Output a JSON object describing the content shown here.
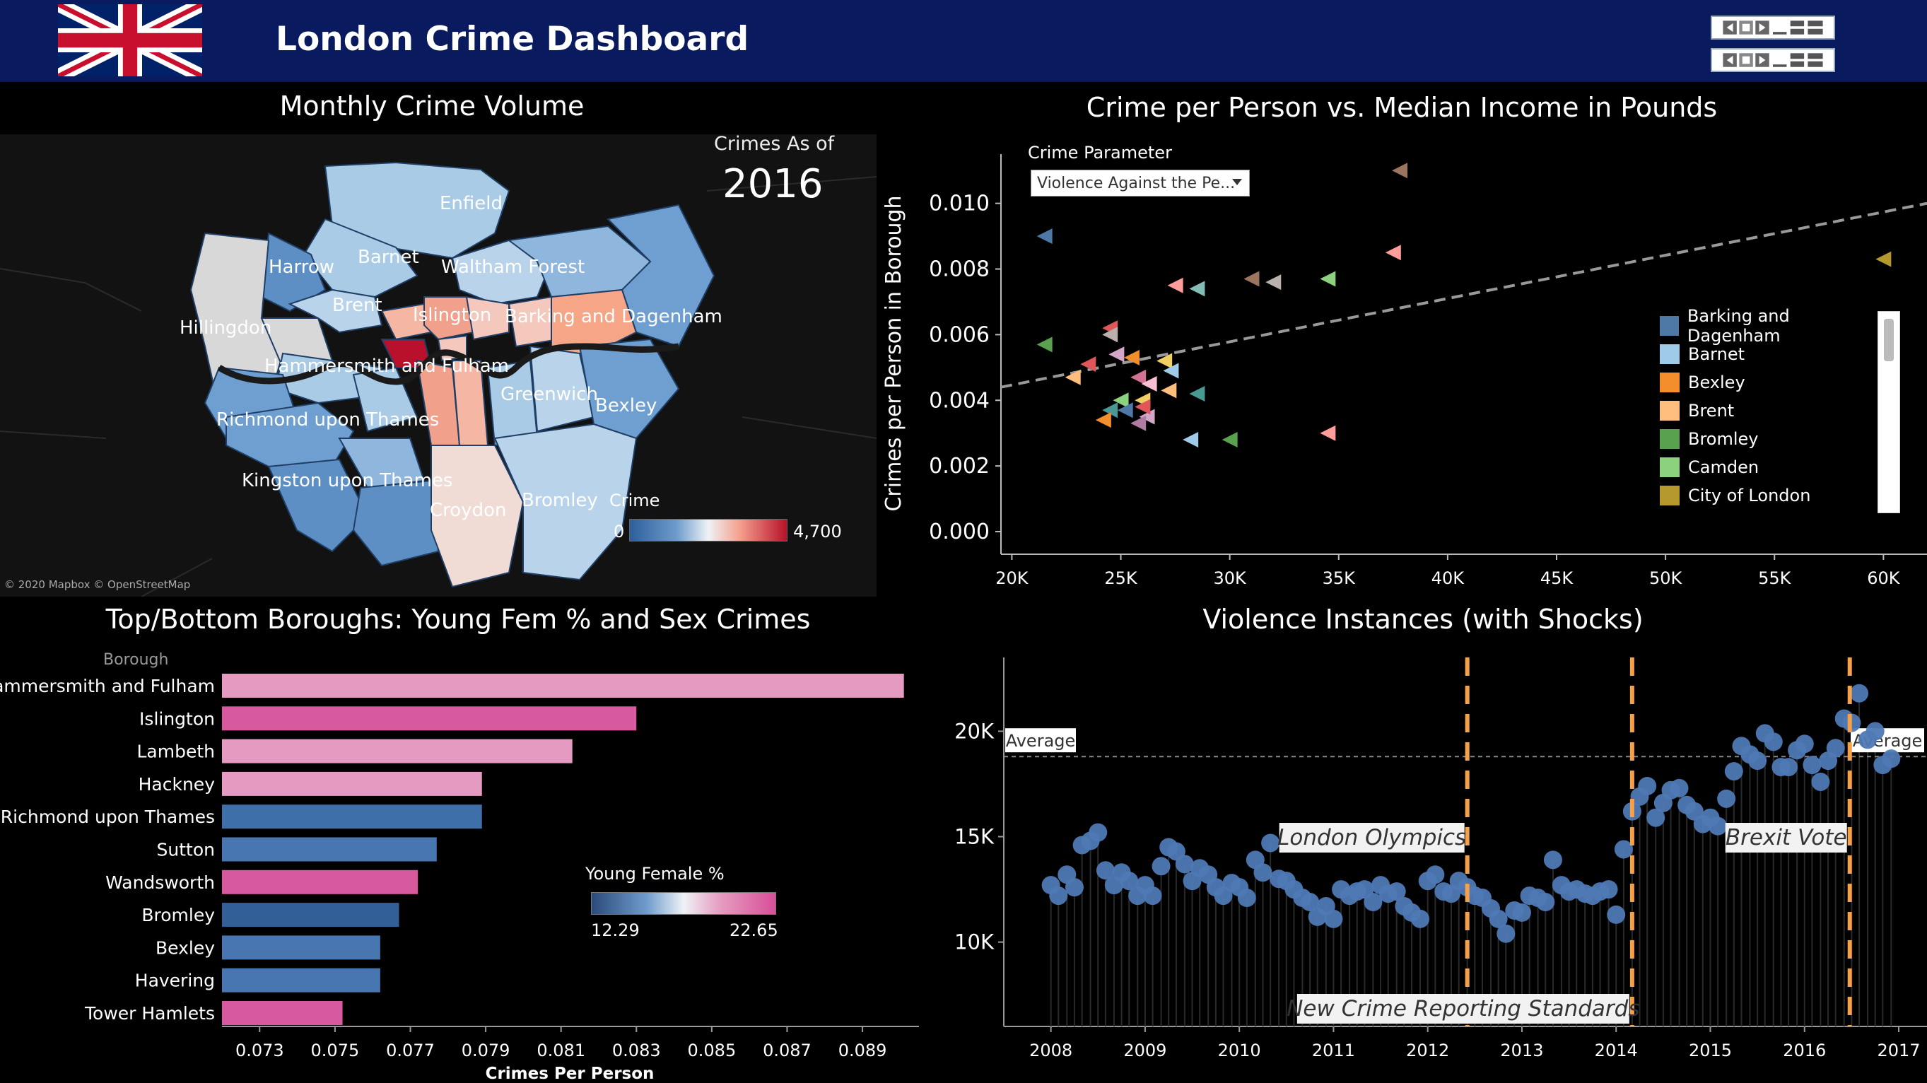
{
  "header": {
    "title": "London Crime Dashboard"
  },
  "map_panel": {
    "title": "Monthly Crime Volume",
    "as_of_label": "Crimes As of",
    "as_of_year": "2016",
    "legend_title": "Crime",
    "legend_min": "0",
    "legend_max": "4,700",
    "credit": "© 2020 Mapbox © OpenStreetMap",
    "boroughs": [
      "Enfield",
      "Harrow",
      "Barnet",
      "Waltham Forest",
      "Brent",
      "Islington",
      "Barking and Dagenham",
      "Hillingdon",
      "Hammersmith and Fulham",
      "Greenwich",
      "Bexley",
      "Richmond upon Thames",
      "Kingston upon Thames",
      "Bromley",
      "Croydon"
    ]
  },
  "scatter_panel": {
    "title": "Crime per Person vs. Median Income in Pounds",
    "parameter_label": "Crime Parameter",
    "parameter_value": "Violence Against the Pe...",
    "legend": [
      {
        "name": "Barking and Dagenham",
        "color": "#4e79a7"
      },
      {
        "name": "Barnet",
        "color": "#a0cbe8"
      },
      {
        "name": "Bexley",
        "color": "#f28e2b"
      },
      {
        "name": "Brent",
        "color": "#ffbe7d"
      },
      {
        "name": "Bromley",
        "color": "#59a14f"
      },
      {
        "name": "Camden",
        "color": "#8cd17d"
      },
      {
        "name": "City of London",
        "color": "#b6992d"
      }
    ]
  },
  "bar_panel": {
    "title": "Top/Bottom Boroughs: Young Fem % and Sex Crimes",
    "header_label": "Borough",
    "legend_title": "Young Female %",
    "legend_min": "12.29",
    "legend_max": "22.65"
  },
  "line_panel": {
    "title": "Violence Instances (with Shocks)",
    "average_label": "Average",
    "shock_labels": [
      "London Olympics",
      "Brexit Vote",
      "New Crime Reporting Standards"
    ]
  },
  "chart_data": [
    {
      "type": "scatter",
      "title": "Crime per Person vs. Median Income in Pounds",
      "xlabel": "",
      "ylabel": "Crimes per Person in Borough",
      "xlim": [
        19500,
        62000
      ],
      "ylim": [
        0.0,
        0.0115
      ],
      "x_ticks": [
        "20K",
        "25K",
        "30K",
        "35K",
        "40K",
        "45K",
        "50K",
        "55K",
        "60K"
      ],
      "x_tick_values": [
        20000,
        25000,
        30000,
        35000,
        40000,
        45000,
        50000,
        55000,
        60000
      ],
      "y_ticks": [
        "0.000",
        "0.002",
        "0.004",
        "0.006",
        "0.008",
        "0.010"
      ],
      "y_tick_values": [
        0.0,
        0.002,
        0.004,
        0.006,
        0.008,
        0.01
      ],
      "trend_line": [
        [
          19500,
          0.0044
        ],
        [
          62000,
          0.01
        ]
      ],
      "points": [
        {
          "x": 21500,
          "y": 0.009,
          "color": "#4e79a7"
        },
        {
          "x": 37800,
          "y": 0.011,
          "color": "#9c755f"
        },
        {
          "x": 37500,
          "y": 0.0085,
          "color": "#ff9d9a"
        },
        {
          "x": 60000,
          "y": 0.0083,
          "color": "#b6992d"
        },
        {
          "x": 21500,
          "y": 0.0057,
          "color": "#59a14f"
        },
        {
          "x": 24500,
          "y": 0.0062,
          "color": "#e15759"
        },
        {
          "x": 24500,
          "y": 0.006,
          "color": "#bab0ac"
        },
        {
          "x": 27500,
          "y": 0.0075,
          "color": "#ff9d9a"
        },
        {
          "x": 28500,
          "y": 0.0074,
          "color": "#86bcb6"
        },
        {
          "x": 31000,
          "y": 0.0077,
          "color": "#9c755f"
        },
        {
          "x": 32000,
          "y": 0.0076,
          "color": "#bab0ac"
        },
        {
          "x": 34500,
          "y": 0.0077,
          "color": "#8cd17d"
        },
        {
          "x": 23500,
          "y": 0.0051,
          "color": "#e15759"
        },
        {
          "x": 24800,
          "y": 0.0054,
          "color": "#d4a6c8"
        },
        {
          "x": 25500,
          "y": 0.0053,
          "color": "#f28e2b"
        },
        {
          "x": 27000,
          "y": 0.0052,
          "color": "#f1ce63"
        },
        {
          "x": 22800,
          "y": 0.0047,
          "color": "#ffbe7d"
        },
        {
          "x": 25800,
          "y": 0.0047,
          "color": "#d37295"
        },
        {
          "x": 27300,
          "y": 0.0049,
          "color": "#a0cbe8"
        },
        {
          "x": 26300,
          "y": 0.0045,
          "color": "#fabfd2"
        },
        {
          "x": 27200,
          "y": 0.0043,
          "color": "#ffbe7d"
        },
        {
          "x": 28500,
          "y": 0.0042,
          "color": "#499894"
        },
        {
          "x": 25000,
          "y": 0.004,
          "color": "#8cd17d"
        },
        {
          "x": 26000,
          "y": 0.004,
          "color": "#f1ce63"
        },
        {
          "x": 25200,
          "y": 0.0037,
          "color": "#4e79a7"
        },
        {
          "x": 24500,
          "y": 0.0037,
          "color": "#499894"
        },
        {
          "x": 24200,
          "y": 0.0034,
          "color": "#f28e2b"
        },
        {
          "x": 26200,
          "y": 0.0035,
          "color": "#d4a6c8"
        },
        {
          "x": 28200,
          "y": 0.0028,
          "color": "#a0cbe8"
        },
        {
          "x": 30000,
          "y": 0.0028,
          "color": "#59a14f"
        },
        {
          "x": 34500,
          "y": 0.003,
          "color": "#ff9d9a"
        },
        {
          "x": 26000,
          "y": 0.0038,
          "color": "#e15759"
        },
        {
          "x": 25800,
          "y": 0.0033,
          "color": "#b07aa1"
        }
      ]
    },
    {
      "type": "bar",
      "title": "Top/Bottom Boroughs: Young Fem % and Sex Crimes",
      "xlabel": "Crimes Per Person",
      "ylabel": "Borough",
      "xlim": [
        0.072,
        0.0905
      ],
      "x_ticks": [
        "0.073",
        "0.075",
        "0.077",
        "0.079",
        "0.081",
        "0.083",
        "0.085",
        "0.087",
        "0.089"
      ],
      "x_tick_values": [
        0.073,
        0.075,
        0.077,
        0.079,
        0.081,
        0.083,
        0.085,
        0.087,
        0.089
      ],
      "categories": [
        "Hammersmith and Fulham",
        "Islington",
        "Lambeth",
        "Hackney",
        "Richmond upon Thames",
        "Sutton",
        "Wandsworth",
        "Bromley",
        "Bexley",
        "Havering",
        "Tower Hamlets"
      ],
      "values": [
        0.0901,
        0.083,
        0.0813,
        0.0789,
        0.0789,
        0.0777,
        0.0772,
        0.0767,
        0.0762,
        0.0762,
        0.0752
      ],
      "colors": [
        "#e49ac1",
        "#d85a9e",
        "#e49ac1",
        "#e49ac1",
        "#3f6fa8",
        "#4876b0",
        "#d85a9e",
        "#335f98",
        "#4876b0",
        "#4876b0",
        "#d85a9e"
      ]
    },
    {
      "type": "scatter",
      "title": "Violence Instances (with Shocks)",
      "xlabel": "",
      "ylabel": "",
      "xlim": [
        2007.5,
        2017.3
      ],
      "ylim": [
        6000,
        23500
      ],
      "x_ticks": [
        "2008",
        "2009",
        "2010",
        "2011",
        "2012",
        "2013",
        "2014",
        "2015",
        "2016",
        "2017"
      ],
      "x_tick_values": [
        2008,
        2009,
        2010,
        2011,
        2012,
        2013,
        2014,
        2015,
        2016,
        2017
      ],
      "y_ticks": [
        "10K",
        "15K",
        "20K"
      ],
      "y_tick_values": [
        10000,
        15000,
        20000
      ],
      "average": 18800,
      "shocks": [
        2012.42,
        2014.17,
        2016.48
      ],
      "x": [
        2008.0,
        2008.08,
        2008.17,
        2008.25,
        2008.33,
        2008.42,
        2008.5,
        2008.58,
        2008.67,
        2008.75,
        2008.83,
        2008.92,
        2009.0,
        2009.08,
        2009.17,
        2009.25,
        2009.33,
        2009.42,
        2009.5,
        2009.58,
        2009.67,
        2009.75,
        2009.83,
        2009.92,
        2010.0,
        2010.08,
        2010.17,
        2010.25,
        2010.33,
        2010.42,
        2010.5,
        2010.58,
        2010.67,
        2010.75,
        2010.83,
        2010.92,
        2011.0,
        2011.08,
        2011.17,
        2011.25,
        2011.33,
        2011.42,
        2011.5,
        2011.58,
        2011.67,
        2011.75,
        2011.83,
        2011.92,
        2012.0,
        2012.08,
        2012.17,
        2012.25,
        2012.33,
        2012.42,
        2012.5,
        2012.58,
        2012.67,
        2012.75,
        2012.83,
        2012.92,
        2013.0,
        2013.08,
        2013.17,
        2013.25,
        2013.33,
        2013.42,
        2013.5,
        2013.58,
        2013.67,
        2013.75,
        2013.83,
        2013.92,
        2014.0,
        2014.08,
        2014.17,
        2014.25,
        2014.33,
        2014.42,
        2014.5,
        2014.58,
        2014.67,
        2014.75,
        2014.83,
        2014.92,
        2015.0,
        2015.08,
        2015.17,
        2015.25,
        2015.33,
        2015.42,
        2015.5,
        2015.58,
        2015.67,
        2015.75,
        2015.83,
        2015.92,
        2016.0,
        2016.08,
        2016.17,
        2016.25,
        2016.33,
        2016.42,
        2016.5,
        2016.58,
        2016.67,
        2016.75,
        2016.83,
        2016.92
      ],
      "values": [
        12700,
        12200,
        13200,
        12600,
        14600,
        14800,
        15200,
        13400,
        12700,
        13300,
        12900,
        12200,
        12700,
        12200,
        13600,
        14500,
        14300,
        13700,
        12900,
        13500,
        13200,
        12600,
        12200,
        12800,
        12600,
        12100,
        13900,
        13300,
        14700,
        13000,
        12900,
        12500,
        12100,
        11900,
        11200,
        11700,
        11100,
        12500,
        12200,
        12400,
        12500,
        11900,
        12700,
        12300,
        12400,
        11700,
        11400,
        11100,
        12900,
        13200,
        12400,
        12300,
        12900,
        12600,
        12200,
        12100,
        11600,
        11100,
        10400,
        11500,
        11400,
        12200,
        12100,
        11900,
        13900,
        12700,
        12400,
        12500,
        12300,
        12200,
        12400,
        12500,
        11300,
        14400,
        16200,
        16900,
        17400,
        15900,
        16600,
        17200,
        17300,
        16500,
        16200,
        15600,
        15900,
        15500,
        16800,
        18100,
        19300,
        18900,
        18600,
        19900,
        19500,
        18300,
        18300,
        19100,
        19400,
        18400,
        17600,
        18600,
        19200,
        20600,
        20400,
        21800,
        19600,
        20000,
        18400,
        18700
      ],
      "color": "#4e79b5"
    }
  ]
}
